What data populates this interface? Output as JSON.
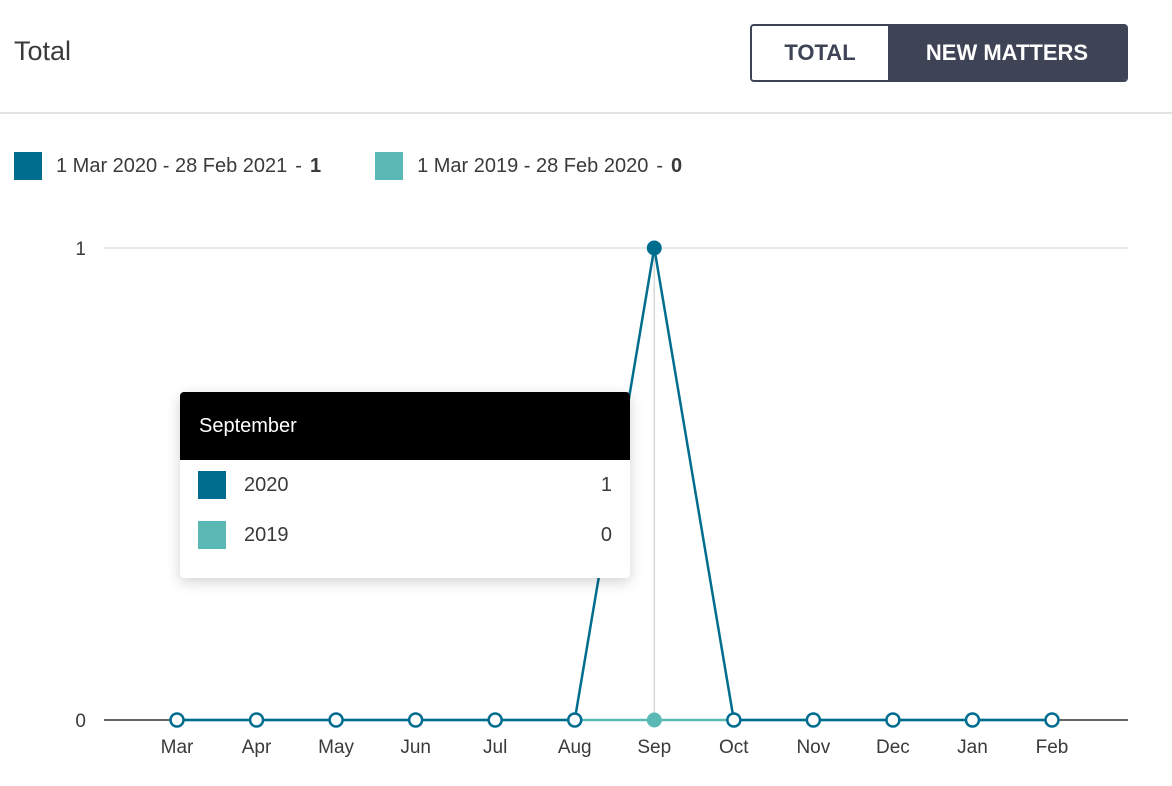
{
  "header": {
    "title": "Total"
  },
  "toggle": {
    "total_label": "TOTAL",
    "new_matters_label": "NEW MATTERS",
    "active": "NEW MATTERS"
  },
  "legend": [
    {
      "label": "1 Mar 2020 - 28 Feb 2021",
      "total": "1",
      "color": "#006d8f"
    },
    {
      "label": "1 Mar 2019 - 28 Feb 2020",
      "total": "0",
      "color": "#5bb9b5"
    }
  ],
  "tooltip": {
    "title": "September",
    "rows": [
      {
        "label": "2020",
        "value": "1",
        "color": "#006d8f"
      },
      {
        "label": "2019",
        "value": "0",
        "color": "#5bb9b5"
      }
    ]
  },
  "chart_data": {
    "type": "line",
    "categories": [
      "Mar",
      "Apr",
      "May",
      "Jun",
      "Jul",
      "Aug",
      "Sep",
      "Oct",
      "Nov",
      "Dec",
      "Jan",
      "Feb"
    ],
    "series": [
      {
        "name": "1 Mar 2020 - 28 Feb 2021",
        "color": "#006d8f",
        "values": [
          0,
          0,
          0,
          0,
          0,
          0,
          1,
          0,
          0,
          0,
          0,
          0
        ]
      },
      {
        "name": "1 Mar 2019 - 28 Feb 2020",
        "color": "#5bb9b5",
        "values": [
          0,
          0,
          0,
          0,
          0,
          0,
          0,
          0,
          0,
          0,
          0,
          0
        ]
      }
    ],
    "yticks": [
      0,
      1
    ],
    "ylim": [
      0,
      1
    ],
    "highlight_category": "Sep",
    "grid": true,
    "legend_position": "top-left"
  }
}
